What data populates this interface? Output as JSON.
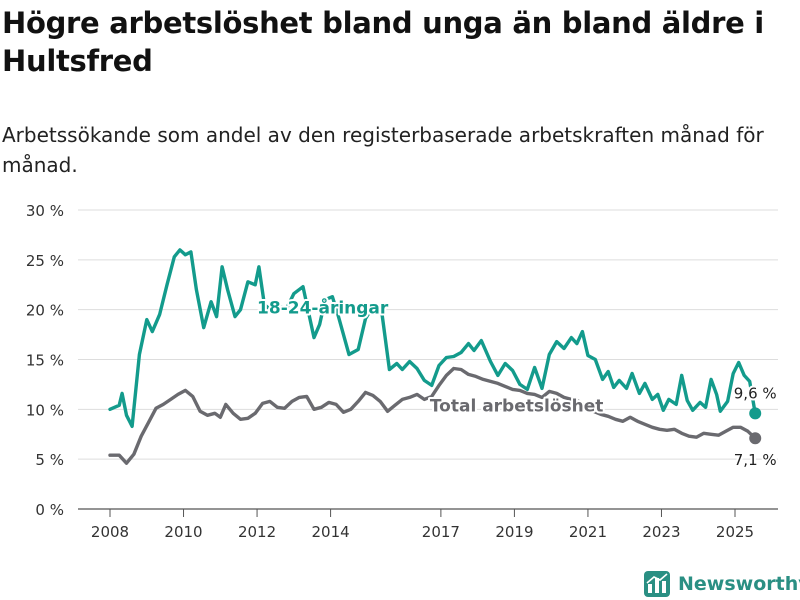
{
  "title": "Högre arbetslöshet bland unga än bland äldre i Hultsfred",
  "subtitle": "Arbetssökande som andel av den registerbaserade arbetskraften månad för månad.",
  "brand": {
    "name": "Newsworthy",
    "icon": "bar-chart-logo-icon",
    "color": "#2a8f83"
  },
  "chart_data": {
    "type": "line",
    "ylim": [
      0,
      30
    ],
    "y_ticks": [
      0,
      5,
      10,
      15,
      20,
      25,
      30
    ],
    "y_tick_labels": [
      "0 %",
      "5 %",
      "10 %",
      "15 %",
      "20 %",
      "25 %",
      "30 %"
    ],
    "x_ticks": [
      2008,
      2010,
      2012,
      2014,
      2017,
      2019,
      2021,
      2023,
      2025
    ],
    "x_tick_labels": [
      "2008",
      "2010",
      "2012",
      "2014",
      "2017",
      "2019",
      "2021",
      "2023",
      "2025"
    ],
    "grid": true,
    "series": [
      {
        "name": "18-24-åringar",
        "color": "#139b8c",
        "label_in_chart": "18-24-åringar",
        "end_label": "9,6 %",
        "points": [
          [
            2008.0,
            10.0
          ],
          [
            2008.25,
            10.4
          ],
          [
            2008.33,
            11.6
          ],
          [
            2008.45,
            9.4
          ],
          [
            2008.6,
            8.3
          ],
          [
            2008.8,
            15.5
          ],
          [
            2009.0,
            19.0
          ],
          [
            2009.15,
            17.8
          ],
          [
            2009.35,
            19.5
          ],
          [
            2009.55,
            22.5
          ],
          [
            2009.75,
            25.3
          ],
          [
            2009.9,
            26.0
          ],
          [
            2010.05,
            25.5
          ],
          [
            2010.2,
            25.8
          ],
          [
            2010.35,
            22.0
          ],
          [
            2010.55,
            18.2
          ],
          [
            2010.75,
            20.8
          ],
          [
            2010.9,
            19.3
          ],
          [
            2011.05,
            24.3
          ],
          [
            2011.2,
            22.0
          ],
          [
            2011.4,
            19.3
          ],
          [
            2011.55,
            20.0
          ],
          [
            2011.75,
            22.8
          ],
          [
            2011.95,
            22.5
          ],
          [
            2012.05,
            24.3
          ],
          [
            2012.2,
            20.5
          ],
          [
            2012.4,
            19.9
          ],
          [
            2012.6,
            20.3
          ],
          [
            2012.8,
            20.1
          ],
          [
            2013.0,
            21.6
          ],
          [
            2013.25,
            22.3
          ],
          [
            2013.55,
            17.2
          ],
          [
            2013.7,
            18.5
          ],
          [
            2013.85,
            21.0
          ],
          [
            2014.05,
            21.3
          ],
          [
            2014.2,
            19.5
          ],
          [
            2014.5,
            15.5
          ],
          [
            2014.75,
            16.0
          ],
          [
            2014.95,
            19.1
          ],
          [
            2015.15,
            20.3
          ],
          [
            2015.4,
            19.5
          ],
          [
            2015.6,
            14.0
          ],
          [
            2015.8,
            14.6
          ],
          [
            2015.95,
            14.0
          ],
          [
            2016.15,
            14.8
          ],
          [
            2016.35,
            14.1
          ],
          [
            2016.55,
            12.9
          ],
          [
            2016.75,
            12.4
          ],
          [
            2016.95,
            14.4
          ],
          [
            2017.15,
            15.2
          ],
          [
            2017.35,
            15.3
          ],
          [
            2017.55,
            15.7
          ],
          [
            2017.75,
            16.6
          ],
          [
            2017.9,
            15.9
          ],
          [
            2018.1,
            16.9
          ],
          [
            2018.35,
            14.8
          ],
          [
            2018.55,
            13.4
          ],
          [
            2018.75,
            14.6
          ],
          [
            2018.95,
            13.9
          ],
          [
            2019.15,
            12.5
          ],
          [
            2019.35,
            12.0
          ],
          [
            2019.55,
            14.2
          ],
          [
            2019.75,
            12.1
          ],
          [
            2019.95,
            15.5
          ],
          [
            2020.15,
            16.8
          ],
          [
            2020.35,
            16.1
          ],
          [
            2020.55,
            17.2
          ],
          [
            2020.7,
            16.6
          ],
          [
            2020.85,
            17.8
          ],
          [
            2021.0,
            15.4
          ],
          [
            2021.2,
            15.0
          ],
          [
            2021.4,
            13.0
          ],
          [
            2021.55,
            13.8
          ],
          [
            2021.7,
            12.2
          ],
          [
            2021.85,
            12.9
          ],
          [
            2022.05,
            12.1
          ],
          [
            2022.2,
            13.6
          ],
          [
            2022.4,
            11.6
          ],
          [
            2022.55,
            12.6
          ],
          [
            2022.75,
            11.0
          ],
          [
            2022.9,
            11.5
          ],
          [
            2023.05,
            9.9
          ],
          [
            2023.2,
            11.0
          ],
          [
            2023.4,
            10.5
          ],
          [
            2023.55,
            13.4
          ],
          [
            2023.7,
            10.9
          ],
          [
            2023.85,
            9.9
          ],
          [
            2024.05,
            10.7
          ],
          [
            2024.2,
            10.2
          ],
          [
            2024.35,
            13.0
          ],
          [
            2024.5,
            11.5
          ],
          [
            2024.6,
            9.8
          ],
          [
            2024.8,
            10.8
          ],
          [
            2024.95,
            13.6
          ],
          [
            2025.1,
            14.7
          ],
          [
            2025.25,
            13.4
          ],
          [
            2025.4,
            12.8
          ],
          [
            2025.55,
            9.6
          ]
        ]
      },
      {
        "name": "Total arbetslöshet",
        "color": "#6a6a6f",
        "label_in_chart": "Total arbetslöshet",
        "end_label": "7,1 %",
        "points": [
          [
            2008.0,
            5.4
          ],
          [
            2008.25,
            5.4
          ],
          [
            2008.45,
            4.6
          ],
          [
            2008.65,
            5.5
          ],
          [
            2008.85,
            7.3
          ],
          [
            2009.05,
            8.7
          ],
          [
            2009.25,
            10.1
          ],
          [
            2009.45,
            10.5
          ],
          [
            2009.65,
            11.0
          ],
          [
            2009.85,
            11.5
          ],
          [
            2010.05,
            11.9
          ],
          [
            2010.25,
            11.3
          ],
          [
            2010.45,
            9.8
          ],
          [
            2010.65,
            9.4
          ],
          [
            2010.85,
            9.6
          ],
          [
            2011.0,
            9.2
          ],
          [
            2011.15,
            10.5
          ],
          [
            2011.35,
            9.6
          ],
          [
            2011.55,
            9.0
          ],
          [
            2011.75,
            9.1
          ],
          [
            2011.95,
            9.6
          ],
          [
            2012.15,
            10.6
          ],
          [
            2012.35,
            10.8
          ],
          [
            2012.55,
            10.2
          ],
          [
            2012.75,
            10.1
          ],
          [
            2012.95,
            10.8
          ],
          [
            2013.15,
            11.2
          ],
          [
            2013.35,
            11.3
          ],
          [
            2013.55,
            10.0
          ],
          [
            2013.75,
            10.2
          ],
          [
            2013.95,
            10.7
          ],
          [
            2014.15,
            10.5
          ],
          [
            2014.35,
            9.7
          ],
          [
            2014.55,
            10.0
          ],
          [
            2014.75,
            10.8
          ],
          [
            2014.95,
            11.7
          ],
          [
            2015.15,
            11.4
          ],
          [
            2015.35,
            10.8
          ],
          [
            2015.55,
            9.8
          ],
          [
            2015.75,
            10.4
          ],
          [
            2015.95,
            11.0
          ],
          [
            2016.15,
            11.2
          ],
          [
            2016.35,
            11.5
          ],
          [
            2016.55,
            11.0
          ],
          [
            2016.75,
            11.3
          ],
          [
            2016.95,
            12.4
          ],
          [
            2017.15,
            13.4
          ],
          [
            2017.35,
            14.1
          ],
          [
            2017.55,
            14.0
          ],
          [
            2017.75,
            13.5
          ],
          [
            2017.95,
            13.3
          ],
          [
            2018.15,
            13.0
          ],
          [
            2018.35,
            12.8
          ],
          [
            2018.55,
            12.6
          ],
          [
            2018.75,
            12.3
          ],
          [
            2018.95,
            12.0
          ],
          [
            2019.15,
            11.9
          ],
          [
            2019.35,
            11.6
          ],
          [
            2019.55,
            11.5
          ],
          [
            2019.75,
            11.2
          ],
          [
            2019.95,
            11.8
          ],
          [
            2020.15,
            11.6
          ],
          [
            2020.35,
            11.2
          ],
          [
            2020.55,
            11.0
          ],
          [
            2020.75,
            10.8
          ],
          [
            2020.95,
            10.3
          ],
          [
            2021.15,
            9.8
          ],
          [
            2021.35,
            9.5
          ],
          [
            2021.55,
            9.3
          ],
          [
            2021.75,
            9.0
          ],
          [
            2021.95,
            8.8
          ],
          [
            2022.15,
            9.2
          ],
          [
            2022.35,
            8.8
          ],
          [
            2022.55,
            8.5
          ],
          [
            2022.75,
            8.2
          ],
          [
            2022.95,
            8.0
          ],
          [
            2023.15,
            7.9
          ],
          [
            2023.35,
            8.0
          ],
          [
            2023.55,
            7.6
          ],
          [
            2023.75,
            7.3
          ],
          [
            2023.95,
            7.2
          ],
          [
            2024.15,
            7.6
          ],
          [
            2024.35,
            7.5
          ],
          [
            2024.55,
            7.4
          ],
          [
            2024.75,
            7.8
          ],
          [
            2024.95,
            8.2
          ],
          [
            2025.15,
            8.2
          ],
          [
            2025.35,
            7.8
          ],
          [
            2025.55,
            7.1
          ]
        ]
      }
    ]
  }
}
